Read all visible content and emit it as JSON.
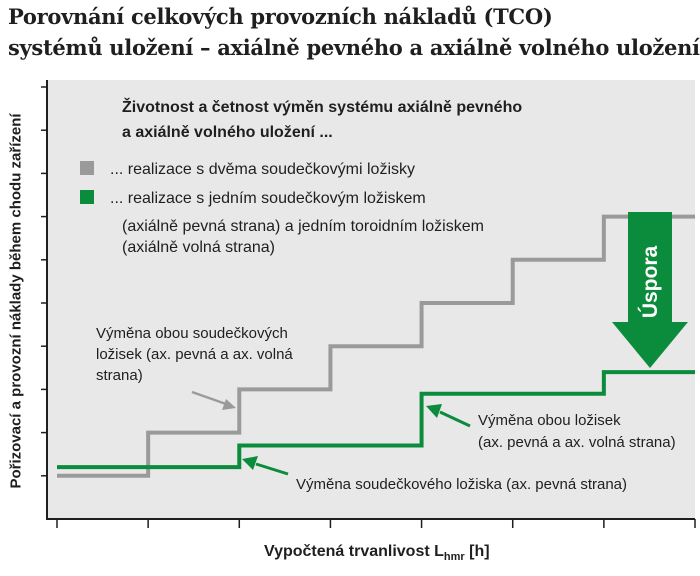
{
  "title": {
    "line1": "Porovnání celkových provozních nákladů (TCO)",
    "line2": "systémů uložení – axiálně pevného a axiálně volného uložení"
  },
  "chart_data": {
    "type": "line",
    "title": "Porovnání celkových provozních nákladů (TCO) systémů uložení – axiálně pevného a axiálně volného uložení",
    "ylabel": "Pořizovací a provozní náklady během chodu zařízení",
    "xlabel_main": "Vypočtená trvanlivost L",
    "xlabel_sub": "hmr",
    "xlabel_unit": "[h]",
    "xlim": [
      0,
      7
    ],
    "ylim": [
      0,
      10
    ],
    "grid": false,
    "x_ticks": [
      0,
      1,
      2,
      3,
      4,
      5,
      6,
      7
    ],
    "y_ticks": [
      0,
      1,
      2,
      3,
      4,
      5,
      6,
      7,
      8,
      9,
      10
    ],
    "legend": {
      "title_line1": "Životnost a četnost výměn systému axiálně pevného",
      "title_line2": "a axiálně volného uložení ...",
      "entries": [
        {
          "lines": [
            "... realizace s dvěma soudečkovými ložisky"
          ],
          "color": "#9a9a9a"
        },
        {
          "lines": [
            "... realizace s jedním soudečkovým ložiskem",
            "(axiálně pevná strana) a jedním toroidním ložiskem",
            "(axiálně volná strana)"
          ],
          "color": "#0b8c3c"
        }
      ]
    },
    "series": [
      {
        "name": "... realizace s dvěma soudečkovými ložisky",
        "color": "#9a9a9a",
        "points": [
          [
            0,
            1
          ],
          [
            1,
            1
          ],
          [
            1,
            2
          ],
          [
            2,
            2
          ],
          [
            2,
            3
          ],
          [
            3,
            3
          ],
          [
            3,
            4
          ],
          [
            4,
            4
          ],
          [
            4,
            5
          ],
          [
            5,
            5
          ],
          [
            5,
            6
          ],
          [
            6,
            6
          ],
          [
            6,
            7
          ],
          [
            7,
            7
          ]
        ]
      },
      {
        "name": "... realizace s jedním soudečkovým ložiskem (axiálně pevná strana) a jedním toroidním ložiskem (axiálně volná strana)",
        "color": "#0b8c3c",
        "points": [
          [
            0,
            1.2
          ],
          [
            2,
            1.2
          ],
          [
            2,
            1.7
          ],
          [
            4,
            1.7
          ],
          [
            4,
            2.9
          ],
          [
            6,
            2.9
          ],
          [
            6,
            3.4
          ],
          [
            7,
            3.4
          ]
        ]
      }
    ],
    "annotations": [
      {
        "lines": [
          "Výměna obou soudečkových",
          "ložisek (ax. pevná a ax. volná",
          "strana)"
        ],
        "color": "#1f1f1f"
      },
      {
        "lines": [
          "Výměna obou ložisek",
          "(ax. pevná a ax. volná strana)"
        ],
        "color": "#1f1f1f"
      },
      {
        "lines": [
          "Výměna soudečkového ložiska (ax. pevná strana)"
        ],
        "color": "#1f1f1f"
      },
      {
        "text": "Úspora",
        "color": "#ffffff"
      }
    ],
    "colors": {
      "background": "#e8e8e8",
      "grey": "#9a9a9a",
      "green": "#0b8c3c",
      "arrow": "#0b8c3c"
    }
  }
}
